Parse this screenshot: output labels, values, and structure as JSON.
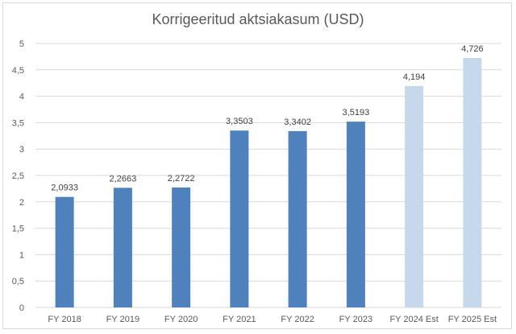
{
  "chart_data": {
    "type": "bar",
    "title": "Korrigeeritud aktsiakasum (USD)",
    "xlabel": "",
    "ylabel": "",
    "categories": [
      "FY 2018",
      "FY 2019",
      "FY 2020",
      "FY 2021",
      "FY 2022",
      "FY 2023",
      "FY 2024 Est",
      "FY 2025 Est"
    ],
    "values": [
      2.0933,
      2.2663,
      2.2722,
      3.3503,
      3.3402,
      3.5193,
      4.194,
      4.726
    ],
    "data_labels": [
      "2,0933",
      "2,2663",
      "2,2722",
      "3,3503",
      "3,3402",
      "3,5193",
      "4,194",
      "4,726"
    ],
    "ylim": [
      0,
      5
    ],
    "y_ticks": [
      "0",
      "0,5",
      "1",
      "1,5",
      "2",
      "2,5",
      "3",
      "3,5",
      "4",
      "4,5",
      "5"
    ],
    "grid": true,
    "legend": "none",
    "colors": {
      "actual": "#4f81bd",
      "estimate": "#c6d9ec",
      "grid": "#d9d9d9",
      "text": "#595959"
    },
    "estimate_flags": [
      false,
      false,
      false,
      false,
      false,
      false,
      true,
      true
    ]
  }
}
